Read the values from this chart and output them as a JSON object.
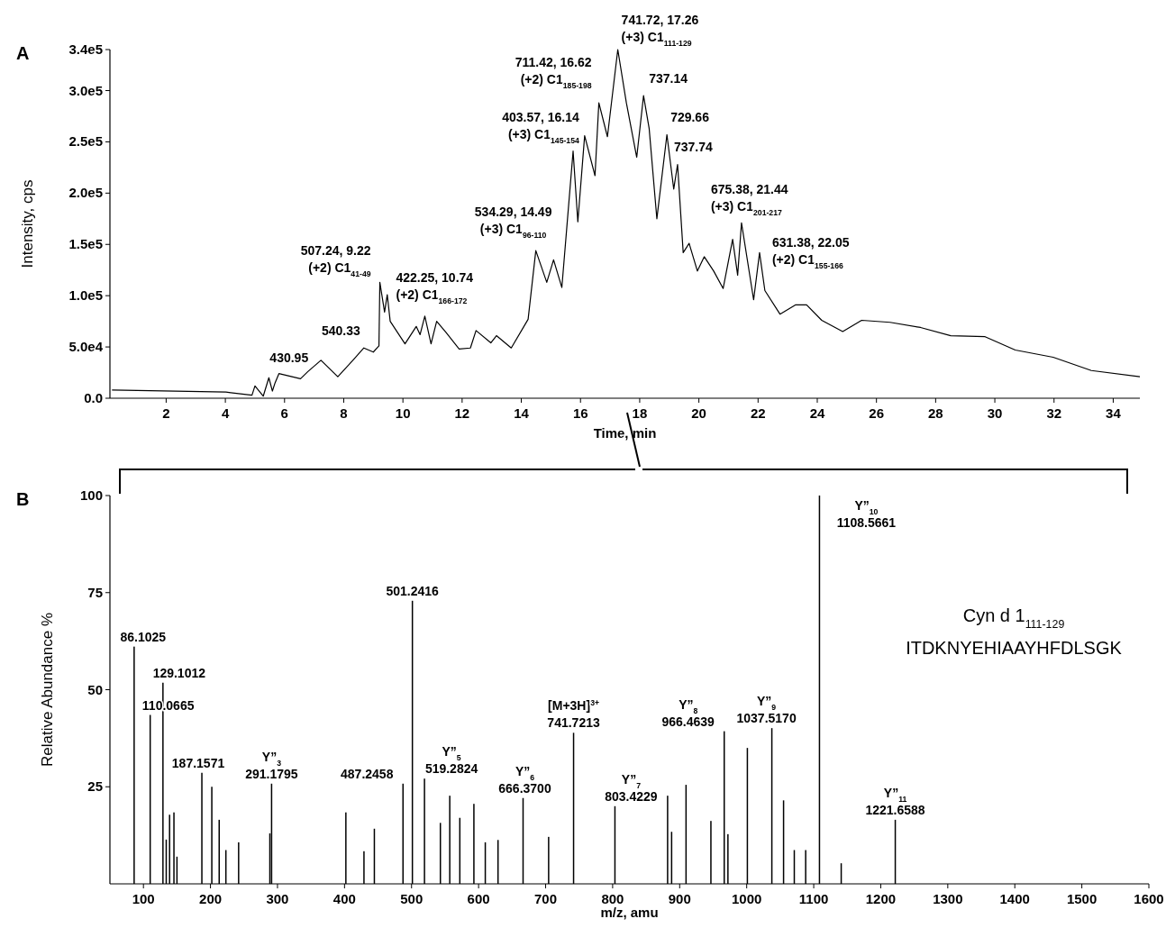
{
  "chart_data": [
    {
      "type": "line",
      "title": "A",
      "xlabel": "Time, min",
      "ylabel": "Intensity, cps",
      "color": "#000000",
      "xlim": [
        0.1,
        34.9
      ],
      "ylim": [
        0,
        340000
      ],
      "xticks": [
        2,
        4,
        6,
        8,
        10,
        12,
        14,
        16,
        18,
        20,
        22,
        24,
        26,
        28,
        30,
        32,
        34
      ],
      "yticks": [
        {
          "value": 0,
          "label": "0.0"
        },
        {
          "value": 50000,
          "label": "5.0e4"
        },
        {
          "value": 100000,
          "label": "1.0e5"
        },
        {
          "value": 150000,
          "label": "1.5e5"
        },
        {
          "value": 200000,
          "label": "2.0e5"
        },
        {
          "value": 250000,
          "label": "2.5e5"
        },
        {
          "value": 300000,
          "label": "3.0e5"
        },
        {
          "value": 340000,
          "label": "3.4e5"
        }
      ],
      "x": [
        0.17,
        4.02,
        4.9,
        5.0,
        5.28,
        5.47,
        5.59,
        5.68,
        5.81,
        6.54,
        6.79,
        7.23,
        7.8,
        8.31,
        8.68,
        9.0,
        9.19,
        9.22,
        9.38,
        9.47,
        9.57,
        10.07,
        10.45,
        10.58,
        10.74,
        10.95,
        11.14,
        11.46,
        11.9,
        12.28,
        12.47,
        12.97,
        13.16,
        13.66,
        14.23,
        14.49,
        14.86,
        15.09,
        15.37,
        15.75,
        15.91,
        16.14,
        16.49,
        16.62,
        16.91,
        17.26,
        17.55,
        17.9,
        18.13,
        18.32,
        18.58,
        18.92,
        19.15,
        19.28,
        19.47,
        19.67,
        19.95,
        20.18,
        20.5,
        20.82,
        21.14,
        21.31,
        21.44,
        21.85,
        22.05,
        22.23,
        22.74,
        23.26,
        23.64,
        24.15,
        24.86,
        25.5,
        26.46,
        27.49,
        28.51,
        29.67,
        30.69,
        31.97,
        33.26,
        34.9
      ],
      "values": [
        8000,
        6000,
        3000,
        12000,
        2000,
        20000,
        7000,
        15000,
        24000,
        19000,
        26000,
        37000,
        21000,
        37000,
        49000,
        45000,
        51000,
        113000,
        84000,
        101000,
        75000,
        53000,
        70000,
        62000,
        80000,
        53000,
        75000,
        64000,
        48000,
        49000,
        66000,
        54000,
        61000,
        49000,
        77000,
        144000,
        113000,
        135000,
        108000,
        241000,
        172000,
        256000,
        217000,
        288000,
        255000,
        340000,
        288000,
        235000,
        295000,
        263000,
        175000,
        257000,
        204000,
        228000,
        142000,
        151000,
        124000,
        138000,
        124000,
        107000,
        155000,
        120000,
        171000,
        96000,
        142000,
        105000,
        82000,
        91000,
        91000,
        76000,
        65000,
        76000,
        74000,
        69000,
        61000,
        60000,
        47000,
        40000,
        27000,
        21000
      ],
      "annotations": [
        {
          "text": "430.95",
          "x": 7.23,
          "y": 37000
        },
        {
          "text": "540.33",
          "x": 8.68,
          "y": 49000
        },
        {
          "text": "507.24, 9.22\n(+2) C1$_{41-49}$",
          "x": 9.22,
          "y": 113000
        },
        {
          "text": "422.25, 10.74\n(+2) C1$_{166-172}$",
          "x": 10.74,
          "y": 80000
        },
        {
          "text": "534.29, 14.49\n(+3) C1$_{96-110}$",
          "x": 14.49,
          "y": 144000
        },
        {
          "text": "403.57, 16.14\n(+3) C1$_{145-154}$",
          "x": 16.14,
          "y": 256000
        },
        {
          "text": "711.42, 16.62\n(+2) C1$_{185-198}$",
          "x": 16.62,
          "y": 288000
        },
        {
          "text": "741.72, 17.26\n(+3) C1$_{111-129}$",
          "x": 17.26,
          "y": 340000
        },
        {
          "text": "737.14",
          "x": 18.13,
          "y": 295000
        },
        {
          "text": "729.66",
          "x": 18.92,
          "y": 257000
        },
        {
          "text": "737.74",
          "x": 19.28,
          "y": 228000
        },
        {
          "text": "675.38, 21.44\n(+3) C1$_{201-217}$",
          "x": 21.44,
          "y": 171000
        },
        {
          "text": "631.38, 22.05\n(+2) C1$_{155-166}$",
          "x": 22.05,
          "y": 142000
        }
      ]
    },
    {
      "type": "bar",
      "title": "B",
      "xlabel": "m/z, amu",
      "ylabel": "Relative Abundance %",
      "color": "#000000",
      "xlim": [
        50,
        1600
      ],
      "ylim": [
        0,
        100
      ],
      "xticks": [
        100,
        200,
        300,
        400,
        500,
        600,
        700,
        800,
        900,
        1000,
        1100,
        1200,
        1300,
        1400,
        1500,
        1600
      ],
      "yticks": [
        25,
        50,
        75,
        100
      ],
      "x": [
        86.1025,
        110.0665,
        129.1012,
        134,
        139,
        145.5,
        150,
        187.1571,
        202,
        213,
        223,
        242,
        288.6,
        291.1795,
        402,
        429,
        444.5,
        487.2458,
        501.2416,
        519.2824,
        543,
        557,
        572,
        593,
        610,
        629,
        666.37,
        704.5,
        741.7213,
        803.4229,
        882,
        888,
        909.5,
        946.6,
        966.4639,
        972,
        1001,
        1037.517,
        1055,
        1071,
        1088,
        1108.5661,
        1141,
        1221.6588
      ],
      "values": [
        61.1,
        43.5,
        51.8,
        11.4,
        17.8,
        18.4,
        7,
        28.6,
        25,
        16.5,
        8.7,
        10.7,
        13,
        25.8,
        18.4,
        8.4,
        14.2,
        25.8,
        72.9,
        27.1,
        15.7,
        22.7,
        17,
        20.6,
        10.7,
        11.3,
        22.1,
        12.1,
        38.9,
        20,
        22.7,
        13.4,
        25.5,
        16.2,
        39.3,
        12.8,
        35,
        40.1,
        21.5,
        8.7,
        8.7,
        100,
        5.3,
        16.5
      ],
      "annotations": [
        {
          "text": "86.1025",
          "x": 86.1025,
          "y": 61.1
        },
        {
          "text": "110.0665",
          "x": 110.0665,
          "y": 43.5
        },
        {
          "text": "129.1012",
          "x": 129.1012,
          "y": 51.8
        },
        {
          "text": "187.1571",
          "x": 187.1571,
          "y": 28.6
        },
        {
          "text": "Y”$_{3}$\n291.1795",
          "x": 291.1795,
          "y": 25.8
        },
        {
          "text": "487.2458",
          "x": 487.2458,
          "y": 25.8
        },
        {
          "text": "501.2416",
          "x": 501.2416,
          "y": 72.9
        },
        {
          "text": "Y”$_{5}$\n519.2824",
          "x": 519.2824,
          "y": 27.1
        },
        {
          "text": "Y”$_{6}$\n666.3700",
          "x": 666.37,
          "y": 22.1
        },
        {
          "text": "[M+3H]$^{3+}$\n741.7213",
          "x": 741.7213,
          "y": 38.9
        },
        {
          "text": "Y”$_{7}$\n803.4229",
          "x": 803.4229,
          "y": 20
        },
        {
          "text": "Y”$_{8}$\n966.4639",
          "x": 966.4639,
          "y": 39.3
        },
        {
          "text": "Y”$_{9}$\n1037.5170",
          "x": 1037.517,
          "y": 40.1
        },
        {
          "text": "Y”$_{10}$\n1108.5661",
          "x": 1108.5661,
          "y": 100
        },
        {
          "text": "Y”$_{11}$\n1221.6588",
          "x": 1221.6588,
          "y": 16.5
        },
        "Cyn d 1$_{111-129}$",
        "ITDKNYEHIAAYHFDLSGK"
      ]
    }
  ]
}
